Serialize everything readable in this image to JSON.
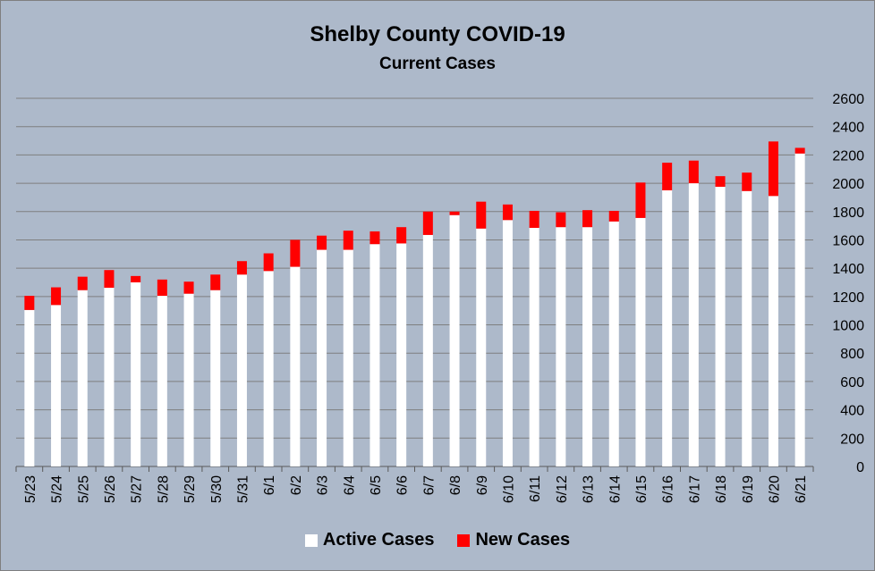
{
  "chart_data": {
    "type": "bar",
    "stacked": true,
    "title": "Shelby County COVID-19",
    "subtitle": "Current Cases",
    "categories": [
      "5/23",
      "5/24",
      "5/25",
      "5/26",
      "5/27",
      "5/28",
      "5/29",
      "5/30",
      "5/31",
      "6/1",
      "6/2",
      "6/3",
      "6/4",
      "6/5",
      "6/6",
      "6/7",
      "6/8",
      "6/9",
      "6/10",
      "6/11",
      "6/12",
      "6/13",
      "6/14",
      "6/15",
      "6/16",
      "6/17",
      "6/18",
      "6/19",
      "6/20",
      "6/21"
    ],
    "series": [
      {
        "name": "Active Cases",
        "color": "#ffffff",
        "values": [
          1105,
          1140,
          1245,
          1262,
          1300,
          1205,
          1220,
          1245,
          1355,
          1380,
          1410,
          1530,
          1530,
          1570,
          1575,
          1635,
          1775,
          1680,
          1740,
          1685,
          1690,
          1690,
          1730,
          1755,
          1950,
          2000,
          1975,
          1945,
          1910,
          2210
        ]
      },
      {
        "name": "New Cases",
        "color": "#ff0000",
        "values": [
          100,
          125,
          95,
          125,
          45,
          115,
          85,
          110,
          95,
          125,
          190,
          100,
          135,
          90,
          115,
          165,
          25,
          190,
          110,
          120,
          105,
          120,
          75,
          250,
          195,
          160,
          75,
          130,
          385,
          40
        ]
      }
    ],
    "ylim": [
      0,
      2600
    ],
    "yticks": [
      0,
      200,
      400,
      600,
      800,
      1000,
      1200,
      1400,
      1600,
      1800,
      2000,
      2200,
      2400,
      2600
    ],
    "ytick_labels": [
      "0",
      "200",
      "400",
      "600",
      "800",
      "1000",
      "1200",
      "1400",
      "1600",
      "1800",
      "2000",
      "2200",
      "2400",
      "2600"
    ],
    "y_axis_position": "right",
    "grid": true,
    "legend_position": "bottom"
  },
  "colors": {
    "background": "#adb9ca",
    "grid": "#7f7f7f",
    "active": "#ffffff",
    "new": "#ff0000"
  }
}
